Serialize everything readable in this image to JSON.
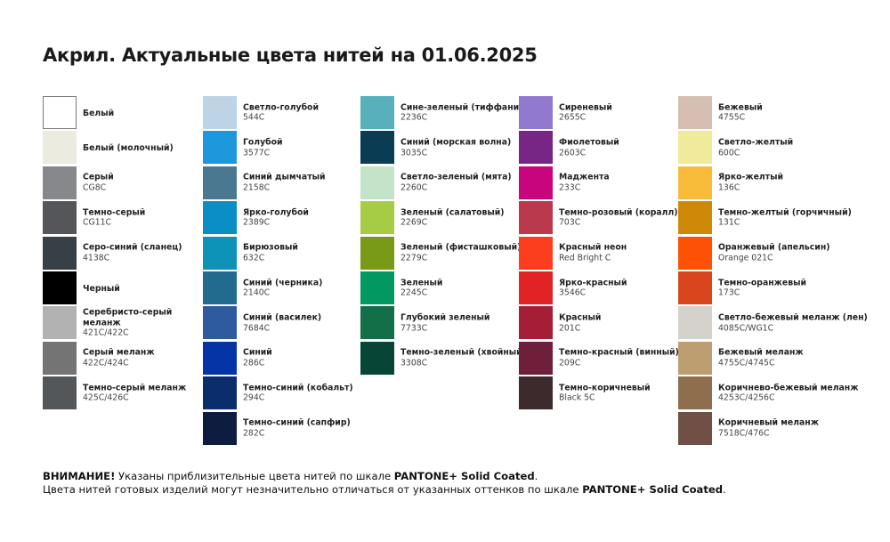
{
  "title": "Акрил. Актуальные цвета нитей на 01.06.2025",
  "columns": [
    [
      {
        "name": "Белый",
        "code": "",
        "color": "#ffffff"
      },
      {
        "name": "Белый (молочный)",
        "code": "",
        "color": "#ecebe0"
      },
      {
        "name": "Серый",
        "code": "CG8C",
        "color": "#87888b"
      },
      {
        "name": "Темно-серый",
        "code": "CG11C",
        "color": "#55565a"
      },
      {
        "name": "Серо-синий (сланец)",
        "code": "4138C",
        "color": "#373f47"
      },
      {
        "name": "Черный",
        "code": "",
        "color": "#000000"
      },
      {
        "name": "Серебристо-серый меланж",
        "code": "421C/422C",
        "color": "#b1b2b1"
      },
      {
        "name": "Серый меланж",
        "code": "422C/424C",
        "color": "#737473"
      },
      {
        "name": "Темно-серый меланж",
        "code": "425C/426C",
        "color": "#545759"
      }
    ],
    [
      {
        "name": "Светло-голубой",
        "code": "544C",
        "color": "#bdd3e6"
      },
      {
        "name": "Голубой",
        "code": "3577C",
        "color": "#1d98dc"
      },
      {
        "name": "Синий дымчатый",
        "code": "2158C",
        "color": "#4b7891"
      },
      {
        "name": "Ярко-голубой",
        "code": "2389C",
        "color": "#0a8ec4"
      },
      {
        "name": "Бирюзовый",
        "code": "632C",
        "color": "#0d93b8"
      },
      {
        "name": "Синий (черника)",
        "code": "2140C",
        "color": "#216b8e"
      },
      {
        "name": "Синий (василек)",
        "code": "7684C",
        "color": "#2e5ba0"
      },
      {
        "name": "Синий",
        "code": "286C",
        "color": "#0434a6"
      },
      {
        "name": "Темно-синий (кобальт)",
        "code": "294C",
        "color": "#0a2d6b"
      },
      {
        "name": "Темно-синий (сапфир)",
        "code": "282C",
        "color": "#0e1d3f"
      }
    ],
    [
      {
        "name": "Сине-зеленый (тиффани)",
        "code": "2236C",
        "color": "#58b0bd"
      },
      {
        "name": "Синий (морская волна)",
        "code": "3035C",
        "color": "#0a3d54"
      },
      {
        "name": "Светло-зеленый (мята)",
        "code": "2260C",
        "color": "#c3e4c8"
      },
      {
        "name": "Зеленый (салатовый)",
        "code": "2269C",
        "color": "#a6cc46"
      },
      {
        "name": "Зеленый (фисташковый)",
        "code": "2279C",
        "color": "#799a16"
      },
      {
        "name": "Зеленый",
        "code": "2245C",
        "color": "#029862"
      },
      {
        "name": "Глубокий зеленый",
        "code": "7733C",
        "color": "#126f47"
      },
      {
        "name": "Темно-зеленый (хвойный)",
        "code": "3308C",
        "color": "#074537"
      }
    ],
    [
      {
        "name": "Сиреневый",
        "code": "2655C",
        "color": "#9279d0"
      },
      {
        "name": "Фиолетовый",
        "code": "2603C",
        "color": "#772686"
      },
      {
        "name": "Маджента",
        "code": "233C",
        "color": "#c9057e"
      },
      {
        "name": "Темно-розовый (коралл)",
        "code": "703C",
        "color": "#bb394c"
      },
      {
        "name": "Красный неон",
        "code": "Red Bright C",
        "color": "#fc3e1f"
      },
      {
        "name": "Ярко-красный",
        "code": "3546C",
        "color": "#e02426"
      },
      {
        "name": "Красный",
        "code": "201C",
        "color": "#a61e35"
      },
      {
        "name": "Темно-красный (винный)",
        "code": "209C",
        "color": "#6e1f39"
      },
      {
        "name": "Темно-коричневый",
        "code": "Black 5C",
        "color": "#3c2a2d"
      }
    ],
    [
      {
        "name": "Бежевый",
        "code": "4755C",
        "color": "#d6beb2"
      },
      {
        "name": "Светло-желтый",
        "code": "600C",
        "color": "#f0eb9b"
      },
      {
        "name": "Ярко-желтый",
        "code": "136C",
        "color": "#f9bb3a"
      },
      {
        "name": "Темно-желтый (горчичный)",
        "code": "131C",
        "color": "#cf8807"
      },
      {
        "name": "Оранжевый (апельсин)",
        "code": "Orange 021C",
        "color": "#fd5104"
      },
      {
        "name": "Темно-оранжевый",
        "code": "173C",
        "color": "#d8461d"
      },
      {
        "name": "Светло-бежевый меланж (лен)",
        "code": "4085C/WG1C",
        "color": "#d5d2cb"
      },
      {
        "name": "Бежевый меланж",
        "code": "4755C/4745C",
        "color": "#bd9e71"
      },
      {
        "name": "Коричнево-бежевый меланж",
        "code": "4253C/4256C",
        "color": "#8e6e4c"
      },
      {
        "name": "Коричневый меланж",
        "code": "7518C/476C",
        "color": "#6f4f46"
      }
    ]
  ],
  "notes": {
    "line1_bold": "ВНИМАНИЕ!",
    "line1_text": " Указаны приблизительные цвета нитей по шкале ",
    "line1_brand": "PANTONE+ Solid Coated",
    "line1_end": ".",
    "line2_text": "Цвета нитей готовых изделий могут незначительно отличаться от указанных оттенков по шкале ",
    "line2_brand": "PANTONE+ Solid Coated",
    "line2_end": "."
  }
}
